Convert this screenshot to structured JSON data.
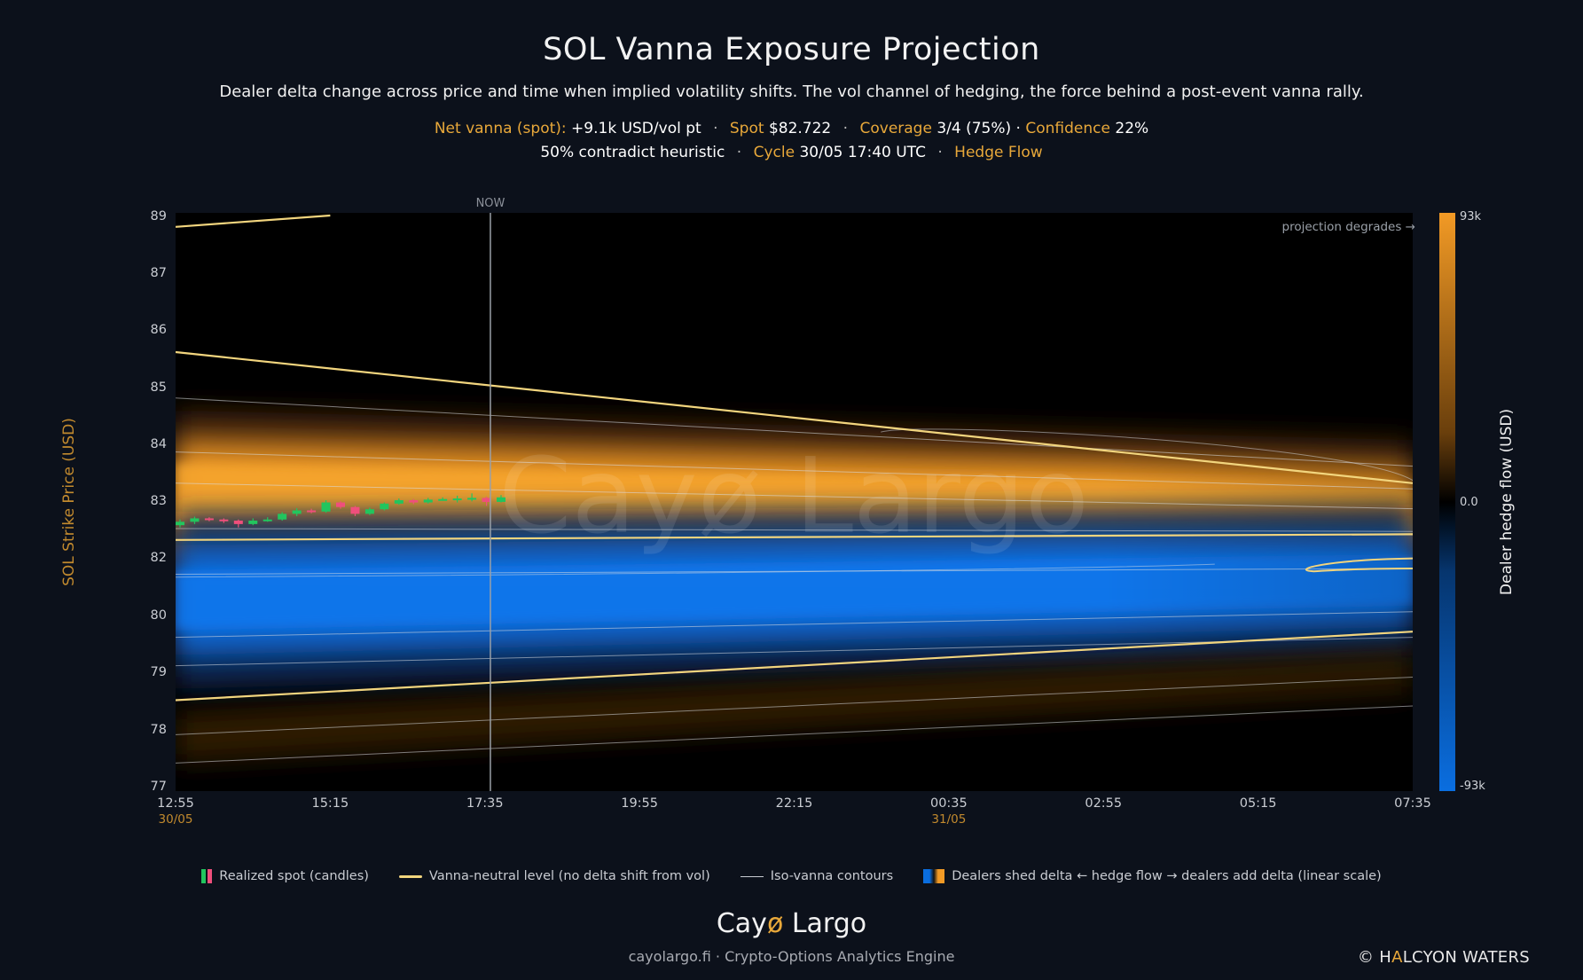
{
  "header": {
    "title": "SOL Vanna Exposure Projection",
    "subtitle": "Dealer delta change across price and time when implied volatility shifts. The vol channel of hedging, the force behind a post-event vanna rally.",
    "line1": {
      "net_vanna_key": "Net vanna (spot):",
      "net_vanna_val": "+9.1k USD/vol pt",
      "spot_key": "Spot",
      "spot_val": "$82.722",
      "coverage_key": "Coverage",
      "coverage_val": "3/4 (75%) ·",
      "confidence_key": "Confidence",
      "confidence_val": "22%"
    },
    "line2": {
      "heuristic": "50% contradict heuristic",
      "cycle_key": "Cycle",
      "cycle_val": "30/05 17:40 UTC",
      "hedge_flow": "Hedge Flow"
    },
    "sep": "·"
  },
  "chart_data": {
    "type": "heatmap",
    "ylabel": "SOL Strike Price (USD)",
    "colorbar_label": "Dealer hedge flow (USD)",
    "colorbar_ticks": [
      "93k",
      "0.0",
      "-93k"
    ],
    "colorbar_range": [
      -93000,
      93000
    ],
    "y_ticks": [
      "89",
      "87",
      "86",
      "85",
      "84",
      "83",
      "82",
      "80",
      "79",
      "78",
      "77"
    ],
    "ylim": [
      77,
      89
    ],
    "x_ticks": [
      "12:55",
      "15:15",
      "17:35",
      "19:55",
      "22:15",
      "00:35",
      "02:55",
      "05:15",
      "07:35"
    ],
    "x_date_labels": [
      {
        "at": "12:55",
        "label": "30/05"
      },
      {
        "at": "00:35",
        "label": "31/05"
      }
    ],
    "now_label": "NOW",
    "now_time": "17:40",
    "annotation": "projection degrades →",
    "watermark": "Cayø Largo",
    "positive_band": {
      "center_start": 83.1,
      "center_end": 82.8,
      "value": 93000
    },
    "negative_band": {
      "center_start": 80.5,
      "center_end": 81.2,
      "value": -93000
    },
    "vanna_neutral_levels": [
      {
        "start": 85.6,
        "end": 83.3
      },
      {
        "start": 82.3,
        "end": 82.4
      },
      {
        "start": 78.5,
        "end": 79.7
      },
      {
        "start": 88.6,
        "end": 89.0
      }
    ],
    "candles": [
      {
        "o": 82.56,
        "c": 82.62,
        "h": 82.66,
        "l": 82.52
      },
      {
        "o": 82.62,
        "c": 82.68,
        "h": 82.71,
        "l": 82.58
      },
      {
        "o": 82.68,
        "c": 82.66,
        "h": 82.7,
        "l": 82.63
      },
      {
        "o": 82.66,
        "c": 82.64,
        "h": 82.68,
        "l": 82.6
      },
      {
        "o": 82.64,
        "c": 82.58,
        "h": 82.66,
        "l": 82.52
      },
      {
        "o": 82.58,
        "c": 82.64,
        "h": 82.68,
        "l": 82.56
      },
      {
        "o": 82.64,
        "c": 82.66,
        "h": 82.7,
        "l": 82.62
      },
      {
        "o": 82.66,
        "c": 82.76,
        "h": 82.79,
        "l": 82.64
      },
      {
        "o": 82.76,
        "c": 82.82,
        "h": 82.86,
        "l": 82.72
      },
      {
        "o": 82.82,
        "c": 82.8,
        "h": 82.85,
        "l": 82.77
      },
      {
        "o": 82.8,
        "c": 82.96,
        "h": 83.0,
        "l": 82.78
      },
      {
        "o": 82.96,
        "c": 82.88,
        "h": 82.98,
        "l": 82.85
      },
      {
        "o": 82.88,
        "c": 82.76,
        "h": 82.9,
        "l": 82.72
      },
      {
        "o": 82.76,
        "c": 82.84,
        "h": 82.87,
        "l": 82.74
      },
      {
        "o": 82.84,
        "c": 82.94,
        "h": 82.96,
        "l": 82.82
      },
      {
        "o": 82.94,
        "c": 83.0,
        "h": 83.03,
        "l": 82.92
      },
      {
        "o": 83.0,
        "c": 82.96,
        "h": 83.02,
        "l": 82.93
      },
      {
        "o": 82.96,
        "c": 83.01,
        "h": 83.04,
        "l": 82.94
      },
      {
        "o": 83.01,
        "c": 83.02,
        "h": 83.05,
        "l": 82.99
      },
      {
        "o": 83.02,
        "c": 83.03,
        "h": 83.08,
        "l": 82.96
      },
      {
        "o": 83.03,
        "c": 83.04,
        "h": 83.12,
        "l": 82.98
      },
      {
        "o": 83.04,
        "c": 82.97,
        "h": 83.06,
        "l": 82.9
      },
      {
        "o": 82.97,
        "c": 83.05,
        "h": 83.09,
        "l": 82.96
      }
    ]
  },
  "legend": {
    "candles": "Realized spot (candles)",
    "neutral": "Vanna-neutral level (no delta shift from vol)",
    "contours": "Iso-vanna contours",
    "flow": "Dealers shed delta ←  hedge flow  → dealers add delta (linear scale)"
  },
  "footer": {
    "brand_a": "Cay",
    "brand_o": "ø",
    "brand_b": " Largo",
    "site": "cayolargo.fi · Crypto-Options Analytics Engine",
    "copy_a": "© H",
    "copy_b": "A",
    "copy_c": "LCYON WATERS"
  },
  "colors": {
    "positive": "#f29a25",
    "negative": "#0a6ee0",
    "neutral_line": "#f2d57e",
    "candle_up": "#22c55e",
    "candle_down": "#ef4f7c",
    "accent_text": "#e8a83a"
  }
}
